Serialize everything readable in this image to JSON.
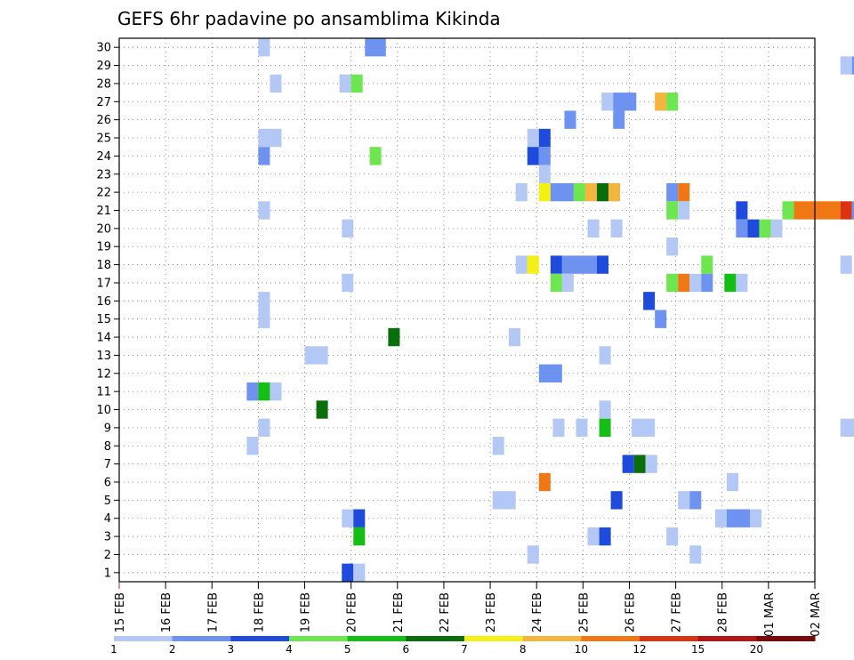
{
  "chart_data": {
    "type": "heatmap",
    "title": "GEFS 6hr padavine po ansamblima Kikinda",
    "xlabel": "",
    "ylabel": "",
    "x_tick_labels": [
      "15 FEB",
      "16 FEB",
      "17 FEB",
      "18 FEB",
      "19 FEB",
      "20 FEB",
      "21 FEB",
      "22 FEB",
      "23 FEB",
      "24 FEB",
      "25 FEB",
      "26 FEB",
      "27 FEB",
      "28 FEB",
      "01 MAR",
      "02 MAR"
    ],
    "y_tick_labels": [
      "1",
      "2",
      "3",
      "4",
      "5",
      "6",
      "7",
      "8",
      "9",
      "10",
      "11",
      "12",
      "13",
      "14",
      "15",
      "16",
      "17",
      "18",
      "19",
      "20",
      "21",
      "22",
      "23",
      "24",
      "25",
      "26",
      "27",
      "28",
      "29",
      "30"
    ],
    "grid": true,
    "colorbar": {
      "labels": [
        "1",
        "2",
        "3",
        "4",
        "5",
        "6",
        "7",
        "8",
        "10",
        "12",
        "15",
        "20"
      ],
      "colors": [
        "#b4c8f5",
        "#6e92f0",
        "#1e4bdc",
        "#6ee650",
        "#14be14",
        "#0a6e0a",
        "#f5f014",
        "#f5b43c",
        "#f07814",
        "#dc3214",
        "#b41414",
        "#780a0a"
      ]
    },
    "cell_value_note": "",
    "cells": [
      {
        "t": [
          3.0,
          3.25
        ],
        "m": 30,
        "c": 0
      },
      {
        "t": [
          5.3,
          5.75
        ],
        "m": 30,
        "c": 1
      },
      {
        "t": [
          15.55,
          15.8
        ],
        "m": 29,
        "c": 0
      },
      {
        "t": [
          15.8,
          16.0
        ],
        "m": 29,
        "c": 1
      },
      {
        "t": [
          3.25,
          3.5
        ],
        "m": 28,
        "c": 0
      },
      {
        "t": [
          4.75,
          5.0
        ],
        "m": 28,
        "c": 0
      },
      {
        "t": [
          5.0,
          5.25
        ],
        "m": 28,
        "c": 3
      },
      {
        "t": [
          10.4,
          10.65
        ],
        "m": 27,
        "c": 0
      },
      {
        "t": [
          10.65,
          11.15
        ],
        "m": 27,
        "c": 1
      },
      {
        "t": [
          11.55,
          11.8
        ],
        "m": 27,
        "c": 7
      },
      {
        "t": [
          11.8,
          12.05
        ],
        "m": 27,
        "c": 3
      },
      {
        "t": [
          9.6,
          9.85
        ],
        "m": 26,
        "c": 1
      },
      {
        "t": [
          10.65,
          10.9
        ],
        "m": 26,
        "c": 1
      },
      {
        "t": [
          3.0,
          3.5
        ],
        "m": 25,
        "c": 0
      },
      {
        "t": [
          8.8,
          9.05
        ],
        "m": 25,
        "c": 0
      },
      {
        "t": [
          9.05,
          9.3
        ],
        "m": 25,
        "c": 2
      },
      {
        "t": [
          3.0,
          3.25
        ],
        "m": 24,
        "c": 1
      },
      {
        "t": [
          5.4,
          5.65
        ],
        "m": 24,
        "c": 3
      },
      {
        "t": [
          8.8,
          9.05
        ],
        "m": 24,
        "c": 2
      },
      {
        "t": [
          9.05,
          9.3
        ],
        "m": 24,
        "c": 1
      },
      {
        "t": [
          9.05,
          9.3
        ],
        "m": 23,
        "c": 0
      },
      {
        "t": [
          8.55,
          8.8
        ],
        "m": 22,
        "c": 0
      },
      {
        "t": [
          9.05,
          9.3
        ],
        "m": 22,
        "c": 6
      },
      {
        "t": [
          9.3,
          9.8
        ],
        "m": 22,
        "c": 1
      },
      {
        "t": [
          9.8,
          10.05
        ],
        "m": 22,
        "c": 3
      },
      {
        "t": [
          10.05,
          10.3
        ],
        "m": 22,
        "c": 7
      },
      {
        "t": [
          10.3,
          10.55
        ],
        "m": 22,
        "c": 5
      },
      {
        "t": [
          10.55,
          10.8
        ],
        "m": 22,
        "c": 7
      },
      {
        "t": [
          11.8,
          12.05
        ],
        "m": 22,
        "c": 1
      },
      {
        "t": [
          12.05,
          12.3
        ],
        "m": 22,
        "c": 8
      },
      {
        "t": [
          3.0,
          3.25
        ],
        "m": 21,
        "c": 0
      },
      {
        "t": [
          11.8,
          12.05
        ],
        "m": 21,
        "c": 3
      },
      {
        "t": [
          12.05,
          12.3
        ],
        "m": 21,
        "c": 0
      },
      {
        "t": [
          13.3,
          13.55
        ],
        "m": 21,
        "c": 2
      },
      {
        "t": [
          14.3,
          14.55
        ],
        "m": 21,
        "c": 3
      },
      {
        "t": [
          14.55,
          15.55
        ],
        "m": 21,
        "c": 8
      },
      {
        "t": [
          15.55,
          15.8
        ],
        "m": 21,
        "c": 9
      },
      {
        "t": [
          15.8,
          16.0
        ],
        "m": 21,
        "c": 1
      },
      {
        "t": [
          4.8,
          5.05
        ],
        "m": 20,
        "c": 0
      },
      {
        "t": [
          10.1,
          10.35
        ],
        "m": 20,
        "c": 0
      },
      {
        "t": [
          10.6,
          10.85
        ],
        "m": 20,
        "c": 0
      },
      {
        "t": [
          13.3,
          13.55
        ],
        "m": 20,
        "c": 1
      },
      {
        "t": [
          13.55,
          13.8
        ],
        "m": 20,
        "c": 2
      },
      {
        "t": [
          13.8,
          14.05
        ],
        "m": 20,
        "c": 3
      },
      {
        "t": [
          14.05,
          14.3
        ],
        "m": 20,
        "c": 0
      },
      {
        "t": [
          11.8,
          12.05
        ],
        "m": 19,
        "c": 0
      },
      {
        "t": [
          8.55,
          8.8
        ],
        "m": 18,
        "c": 0
      },
      {
        "t": [
          8.8,
          9.05
        ],
        "m": 18,
        "c": 6
      },
      {
        "t": [
          9.3,
          9.55
        ],
        "m": 18,
        "c": 2
      },
      {
        "t": [
          9.55,
          10.3
        ],
        "m": 18,
        "c": 1
      },
      {
        "t": [
          10.3,
          10.55
        ],
        "m": 18,
        "c": 2
      },
      {
        "t": [
          12.55,
          12.8
        ],
        "m": 18,
        "c": 3
      },
      {
        "t": [
          15.55,
          15.8
        ],
        "m": 18,
        "c": 0
      },
      {
        "t": [
          4.8,
          5.05
        ],
        "m": 17,
        "c": 0
      },
      {
        "t": [
          9.3,
          9.55
        ],
        "m": 17,
        "c": 3
      },
      {
        "t": [
          9.55,
          9.8
        ],
        "m": 17,
        "c": 0
      },
      {
        "t": [
          11.8,
          12.05
        ],
        "m": 17,
        "c": 3
      },
      {
        "t": [
          12.05,
          12.3
        ],
        "m": 17,
        "c": 8
      },
      {
        "t": [
          12.3,
          12.55
        ],
        "m": 17,
        "c": 0
      },
      {
        "t": [
          12.55,
          12.8
        ],
        "m": 17,
        "c": 1
      },
      {
        "t": [
          13.05,
          13.3
        ],
        "m": 17,
        "c": 4
      },
      {
        "t": [
          13.3,
          13.55
        ],
        "m": 17,
        "c": 0
      },
      {
        "t": [
          3.0,
          3.25
        ],
        "m": 16,
        "c": 0
      },
      {
        "t": [
          11.3,
          11.55
        ],
        "m": 16,
        "c": 2
      },
      {
        "t": [
          3.0,
          3.25
        ],
        "m": 15,
        "c": 0
      },
      {
        "t": [
          11.55,
          11.8
        ],
        "m": 15,
        "c": 1
      },
      {
        "t": [
          5.8,
          6.05
        ],
        "m": 14,
        "c": 5
      },
      {
        "t": [
          8.4,
          8.65
        ],
        "m": 14,
        "c": 0
      },
      {
        "t": [
          4.0,
          4.5
        ],
        "m": 13,
        "c": 0
      },
      {
        "t": [
          10.35,
          10.6
        ],
        "m": 13,
        "c": 0
      },
      {
        "t": [
          9.05,
          9.55
        ],
        "m": 12,
        "c": 1
      },
      {
        "t": [
          2.75,
          3.0
        ],
        "m": 11,
        "c": 1
      },
      {
        "t": [
          3.0,
          3.25
        ],
        "m": 11,
        "c": 4
      },
      {
        "t": [
          3.25,
          3.5
        ],
        "m": 11,
        "c": 0
      },
      {
        "t": [
          4.25,
          4.5
        ],
        "m": 10,
        "c": 5
      },
      {
        "t": [
          10.35,
          10.6
        ],
        "m": 10,
        "c": 0
      },
      {
        "t": [
          3.0,
          3.25
        ],
        "m": 9,
        "c": 0
      },
      {
        "t": [
          9.35,
          9.6
        ],
        "m": 9,
        "c": 0
      },
      {
        "t": [
          9.85,
          10.1
        ],
        "m": 9,
        "c": 0
      },
      {
        "t": [
          10.35,
          10.6
        ],
        "m": 9,
        "c": 4
      },
      {
        "t": [
          11.05,
          11.55
        ],
        "m": 9,
        "c": 0
      },
      {
        "t": [
          15.55,
          16.0
        ],
        "m": 9,
        "c": 0
      },
      {
        "t": [
          2.75,
          3.0
        ],
        "m": 8,
        "c": 0
      },
      {
        "t": [
          8.05,
          8.3
        ],
        "m": 8,
        "c": 0
      },
      {
        "t": [
          10.85,
          11.1
        ],
        "m": 7,
        "c": 2
      },
      {
        "t": [
          11.1,
          11.35
        ],
        "m": 7,
        "c": 5
      },
      {
        "t": [
          11.35,
          11.6
        ],
        "m": 7,
        "c": 0
      },
      {
        "t": [
          9.05,
          9.3
        ],
        "m": 6,
        "c": 8
      },
      {
        "t": [
          13.1,
          13.35
        ],
        "m": 6,
        "c": 0
      },
      {
        "t": [
          8.05,
          8.55
        ],
        "m": 5,
        "c": 0
      },
      {
        "t": [
          10.6,
          10.85
        ],
        "m": 5,
        "c": 2
      },
      {
        "t": [
          12.05,
          12.3
        ],
        "m": 5,
        "c": 0
      },
      {
        "t": [
          12.3,
          12.55
        ],
        "m": 5,
        "c": 1
      },
      {
        "t": [
          4.8,
          5.05
        ],
        "m": 4,
        "c": 0
      },
      {
        "t": [
          5.05,
          5.3
        ],
        "m": 4,
        "c": 2
      },
      {
        "t": [
          12.85,
          13.1
        ],
        "m": 4,
        "c": 0
      },
      {
        "t": [
          13.1,
          13.6
        ],
        "m": 4,
        "c": 1
      },
      {
        "t": [
          13.6,
          13.85
        ],
        "m": 4,
        "c": 0
      },
      {
        "t": [
          5.05,
          5.3
        ],
        "m": 3,
        "c": 4
      },
      {
        "t": [
          10.1,
          10.35
        ],
        "m": 3,
        "c": 0
      },
      {
        "t": [
          10.35,
          10.6
        ],
        "m": 3,
        "c": 2
      },
      {
        "t": [
          11.8,
          12.05
        ],
        "m": 3,
        "c": 0
      },
      {
        "t": [
          8.8,
          9.05
        ],
        "m": 2,
        "c": 0
      },
      {
        "t": [
          12.3,
          12.55
        ],
        "m": 2,
        "c": 0
      },
      {
        "t": [
          4.8,
          5.05
        ],
        "m": 1,
        "c": 2
      },
      {
        "t": [
          5.05,
          5.3
        ],
        "m": 1,
        "c": 0
      }
    ]
  }
}
